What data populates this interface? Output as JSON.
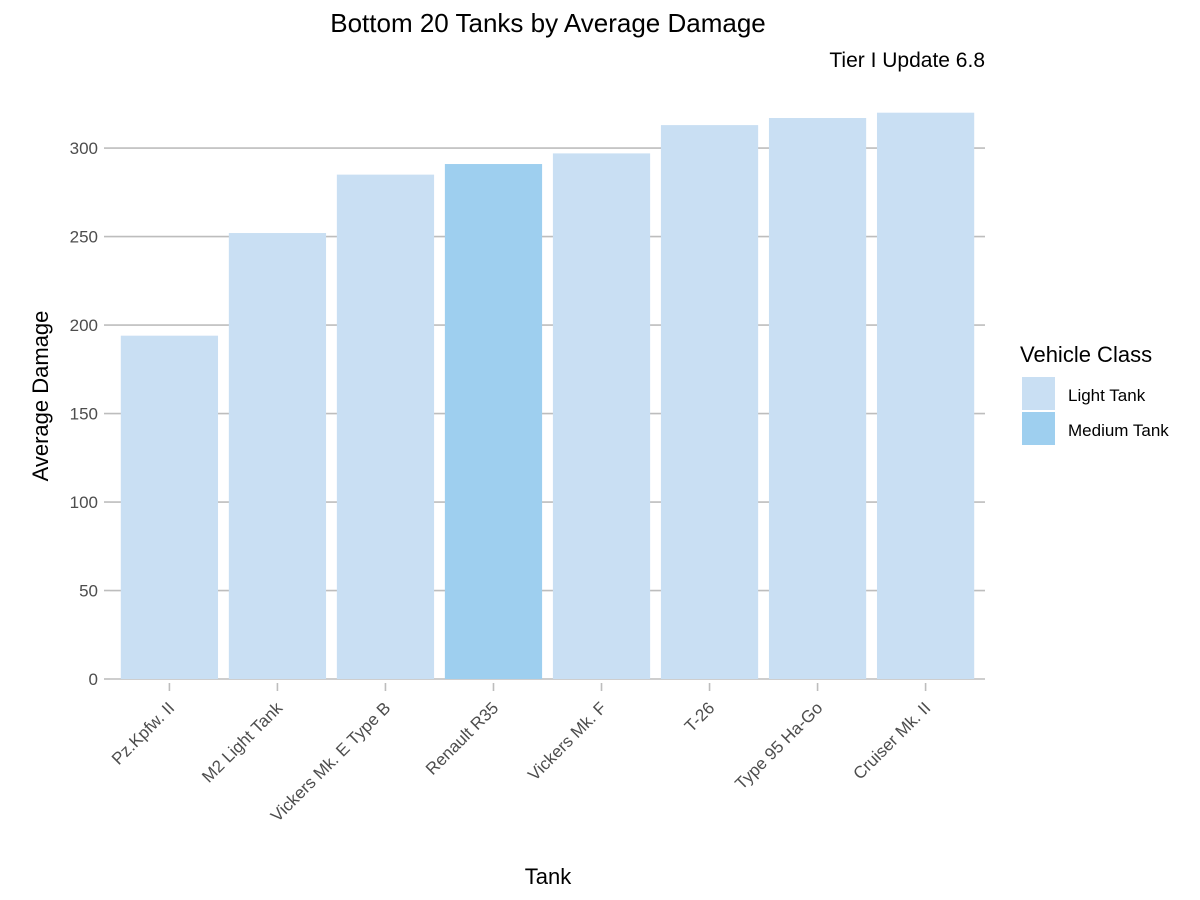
{
  "chart_data": {
    "type": "bar",
    "title": "Bottom 20 Tanks by Average Damage",
    "subtitle": "Tier I Update 6.8",
    "xlabel": "Tank",
    "ylabel": "Average Damage",
    "ylim": [
      0,
      330
    ],
    "yticks": [
      0,
      50,
      100,
      150,
      200,
      250,
      300
    ],
    "ytick_labels": [
      "0",
      "50",
      "100",
      "150",
      "200",
      "250",
      "300"
    ],
    "grid": true,
    "categories": [
      "Pz.Kpfw. II",
      "M2 Light Tank",
      "Vickers Mk. E Type B",
      "Renault R35",
      "Vickers Mk. F",
      "T-26",
      "Type 95 Ha-Go",
      "Cruiser Mk. II"
    ],
    "values": [
      194,
      252,
      285,
      291,
      297,
      313,
      317,
      320
    ],
    "classes": [
      "Light Tank",
      "Light Tank",
      "Light Tank",
      "Medium Tank",
      "Light Tank",
      "Light Tank",
      "Light Tank",
      "Light Tank"
    ],
    "legend": {
      "title": "Vehicle Class",
      "placement": "right",
      "entries": [
        {
          "label": "Light Tank",
          "color": "#c9dff3"
        },
        {
          "label": "Medium Tank",
          "color": "#9ecfef"
        }
      ]
    },
    "colors": {
      "grid": "#bdbdbd",
      "tick_text": "#4d4d4d",
      "text": "#000000"
    }
  }
}
